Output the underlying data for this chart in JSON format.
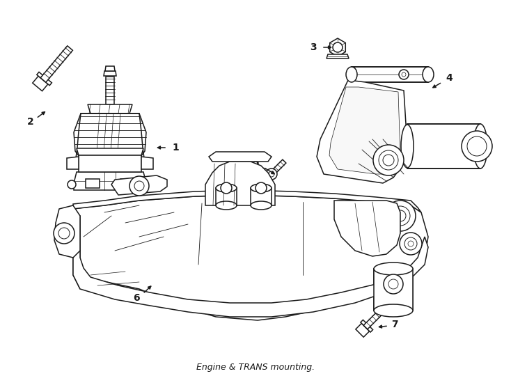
{
  "title": "Engine & TRANS mounting.",
  "bg": "#ffffff",
  "lc": "#1a1a1a",
  "lw": 1.1,
  "fig_w": 7.34,
  "fig_h": 5.4,
  "dpi": 100
}
